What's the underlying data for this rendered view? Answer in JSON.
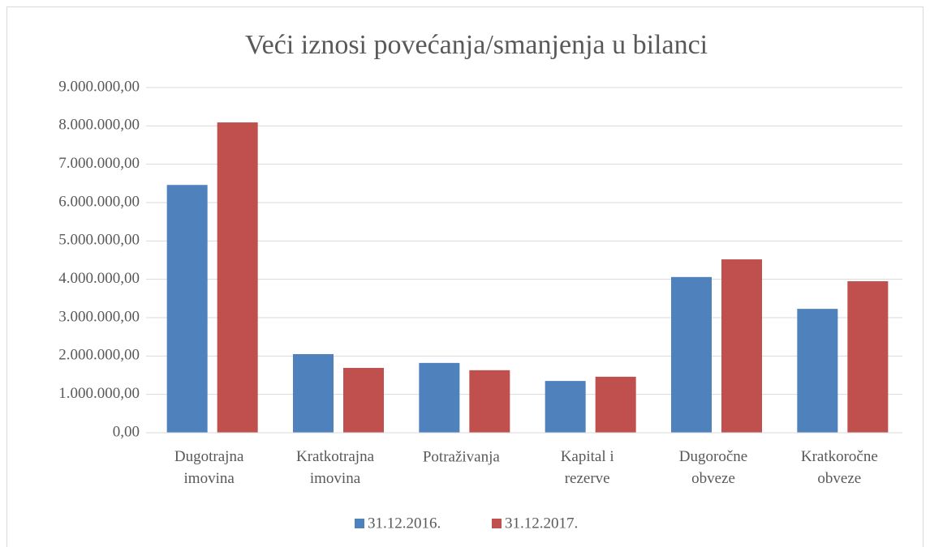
{
  "chart_data": {
    "type": "bar",
    "title": "Veći iznosi povećanja/smanjenja u bilanci",
    "categories": [
      "Dugotrajna imovina",
      "Kratkotrajna imovina",
      "Potraživanja",
      "Kapital i rezerve",
      "Dugoročne obveze",
      "Kratkoročne obveze"
    ],
    "series": [
      {
        "name": "31.12.2016.",
        "color": "#4f81bd",
        "values": [
          6460000,
          2050000,
          1820000,
          1350000,
          4060000,
          3230000
        ]
      },
      {
        "name": "31.12.2017.",
        "color": "#c0504d",
        "values": [
          8090000,
          1690000,
          1630000,
          1460000,
          4520000,
          3950000
        ]
      }
    ],
    "ylim": [
      0,
      9000000
    ],
    "yticks": [
      {
        "value": 0,
        "label": "0,00"
      },
      {
        "value": 1000000,
        "label": "1.000.000,00"
      },
      {
        "value": 2000000,
        "label": "2.000.000,00"
      },
      {
        "value": 3000000,
        "label": "3.000.000,00"
      },
      {
        "value": 4000000,
        "label": "4.000.000,00"
      },
      {
        "value": 5000000,
        "label": "5.000.000,00"
      },
      {
        "value": 6000000,
        "label": "6.000.000,00"
      },
      {
        "value": 7000000,
        "label": "7.000.000,00"
      },
      {
        "value": 8000000,
        "label": "8.000.000,00"
      },
      {
        "value": 9000000,
        "label": "9.000.000,00"
      }
    ],
    "grid": true,
    "legend": "bottom"
  }
}
